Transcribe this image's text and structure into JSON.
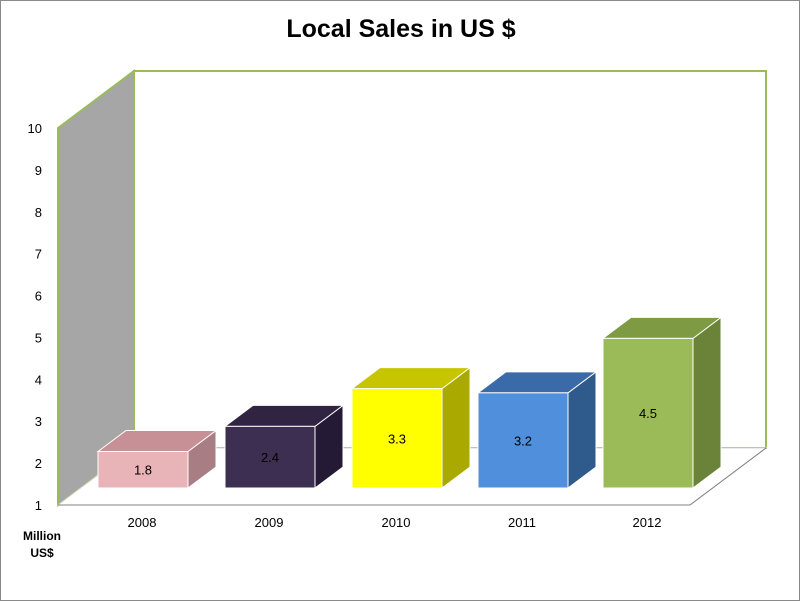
{
  "chart_data": {
    "type": "bar",
    "title": "Local Sales in US $",
    "categories": [
      "2008",
      "2009",
      "2010",
      "2011",
      "2012"
    ],
    "values": [
      1.8,
      2.4,
      3.3,
      3.2,
      4.5
    ],
    "data_labels": [
      "1.8",
      "2.4",
      "3.3",
      "3.2",
      "4.5"
    ],
    "ylabel_lines": [
      "Million",
      "US$"
    ],
    "yticks": [
      "1",
      "2",
      "3",
      "4",
      "5",
      "6",
      "7",
      "8",
      "9",
      "10"
    ],
    "ylim": [
      1,
      10
    ],
    "grid": false,
    "style": "3d-column",
    "colors": {
      "bars": [
        "#e8b4b8",
        "#3c2f52",
        "#ffff00",
        "#4f8fdc",
        "#9bbb59"
      ],
      "sides": [
        "#a87e84",
        "#251a36",
        "#aaa900",
        "#2f5a8c",
        "#6b8339"
      ],
      "tops": [
        "#c79096",
        "#302442",
        "#c7c400",
        "#3a6aa8",
        "#7e9b43"
      ],
      "wall_border": "#9bbb59",
      "side_wall": "#a6a6a6",
      "floor": "#ffffff"
    }
  }
}
